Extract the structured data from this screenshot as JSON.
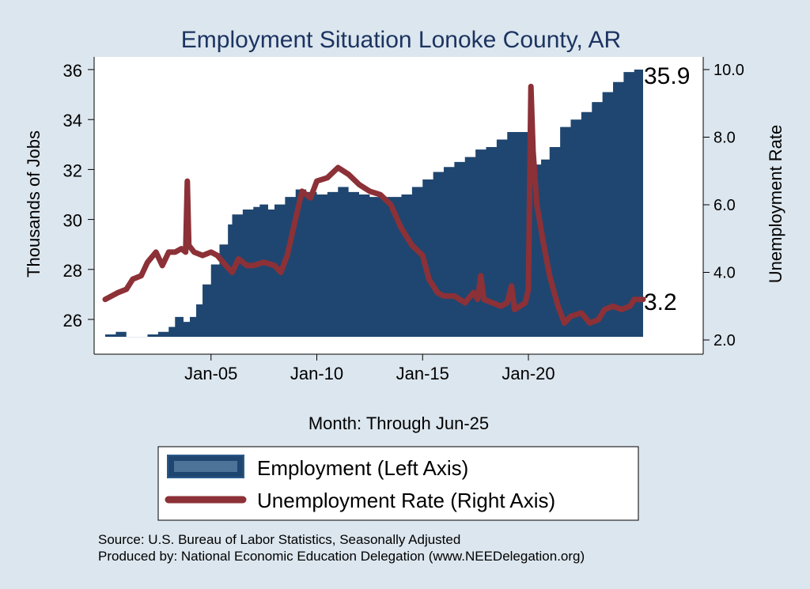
{
  "chart_data": {
    "type": "area+line",
    "title": "Employment Situation Lonoke  County, AR",
    "xlabel": "Month: Through Jun-25",
    "ylabel_left": "Thousands of Jobs",
    "ylabel_right": "Unemployment Rate",
    "x_range": [
      "2000-01",
      "2025-06"
    ],
    "x_ticks": [
      {
        "label": "Jan-05",
        "value": 2005.0
      },
      {
        "label": "Jan-10",
        "value": 2010.0
      },
      {
        "label": "Jan-15",
        "value": 2015.0
      },
      {
        "label": "Jan-20",
        "value": 2020.0
      }
    ],
    "ylim_left": [
      25.2,
      36.5
    ],
    "yticks_left": [
      26,
      28,
      30,
      32,
      34,
      36
    ],
    "ylim_right": [
      1.7,
      10.3
    ],
    "yticks_right": [
      "2.0",
      "4.0",
      "6.0",
      "8.0",
      "10.0"
    ],
    "series": [
      {
        "name": "Employment (Left Axis)",
        "axis": "left",
        "style": "area",
        "color": "#1f4670",
        "points": [
          [
            2000.0,
            25.4
          ],
          [
            2000.5,
            25.5
          ],
          [
            2001.0,
            25.3
          ],
          [
            2001.5,
            25.3
          ],
          [
            2002.0,
            25.4
          ],
          [
            2002.5,
            25.5
          ],
          [
            2003.0,
            25.7
          ],
          [
            2003.3,
            26.1
          ],
          [
            2003.7,
            25.9
          ],
          [
            2004.0,
            26.1
          ],
          [
            2004.3,
            26.6
          ],
          [
            2004.6,
            27.4
          ],
          [
            2005.0,
            28.2
          ],
          [
            2005.4,
            29.0
          ],
          [
            2005.8,
            29.8
          ],
          [
            2006.0,
            30.2
          ],
          [
            2006.5,
            30.4
          ],
          [
            2007.0,
            30.5
          ],
          [
            2007.3,
            30.6
          ],
          [
            2007.7,
            30.4
          ],
          [
            2008.0,
            30.6
          ],
          [
            2008.5,
            30.9
          ],
          [
            2009.0,
            31.2
          ],
          [
            2009.5,
            31.1
          ],
          [
            2010.0,
            31.0
          ],
          [
            2010.5,
            31.1
          ],
          [
            2011.0,
            31.3
          ],
          [
            2011.5,
            31.1
          ],
          [
            2012.0,
            31.0
          ],
          [
            2012.5,
            30.9
          ],
          [
            2013.0,
            30.9
          ],
          [
            2013.5,
            30.9
          ],
          [
            2014.0,
            31.0
          ],
          [
            2014.5,
            31.3
          ],
          [
            2015.0,
            31.6
          ],
          [
            2015.5,
            31.9
          ],
          [
            2016.0,
            32.1
          ],
          [
            2016.5,
            32.3
          ],
          [
            2017.0,
            32.5
          ],
          [
            2017.5,
            32.8
          ],
          [
            2018.0,
            32.9
          ],
          [
            2018.5,
            33.2
          ],
          [
            2019.0,
            33.5
          ],
          [
            2019.5,
            33.5
          ],
          [
            2020.0,
            33.6
          ],
          [
            2020.15,
            32.4
          ],
          [
            2020.3,
            32.2
          ],
          [
            2020.6,
            32.4
          ],
          [
            2021.0,
            32.9
          ],
          [
            2021.5,
            33.7
          ],
          [
            2022.0,
            34.0
          ],
          [
            2022.5,
            34.3
          ],
          [
            2023.0,
            34.7
          ],
          [
            2023.5,
            35.1
          ],
          [
            2024.0,
            35.5
          ],
          [
            2024.5,
            35.9
          ],
          [
            2025.0,
            36.0
          ],
          [
            2025.42,
            35.9
          ]
        ]
      },
      {
        "name": "Unemployment Rate (Right Axis)",
        "axis": "right",
        "style": "line",
        "color": "#8c3137",
        "points": [
          [
            2000.0,
            3.2
          ],
          [
            2000.3,
            3.3
          ],
          [
            2000.6,
            3.4
          ],
          [
            2001.0,
            3.5
          ],
          [
            2001.3,
            3.8
          ],
          [
            2001.7,
            3.9
          ],
          [
            2002.0,
            4.3
          ],
          [
            2002.4,
            4.6
          ],
          [
            2002.7,
            4.2
          ],
          [
            2003.0,
            4.6
          ],
          [
            2003.3,
            4.6
          ],
          [
            2003.6,
            4.7
          ],
          [
            2003.8,
            4.6
          ],
          [
            2003.88,
            6.7
          ],
          [
            2003.95,
            4.8
          ],
          [
            2004.2,
            4.6
          ],
          [
            2004.6,
            4.5
          ],
          [
            2005.0,
            4.6
          ],
          [
            2005.3,
            4.5
          ],
          [
            2005.7,
            4.2
          ],
          [
            2006.0,
            4.0
          ],
          [
            2006.3,
            4.4
          ],
          [
            2006.7,
            4.2
          ],
          [
            2007.0,
            4.2
          ],
          [
            2007.5,
            4.3
          ],
          [
            2008.0,
            4.2
          ],
          [
            2008.3,
            4.0
          ],
          [
            2008.6,
            4.5
          ],
          [
            2009.0,
            5.6
          ],
          [
            2009.3,
            6.4
          ],
          [
            2009.7,
            6.2
          ],
          [
            2010.0,
            6.7
          ],
          [
            2010.5,
            6.8
          ],
          [
            2011.0,
            7.1
          ],
          [
            2011.5,
            6.9
          ],
          [
            2012.0,
            6.6
          ],
          [
            2012.5,
            6.4
          ],
          [
            2013.0,
            6.3
          ],
          [
            2013.5,
            6.0
          ],
          [
            2014.0,
            5.3
          ],
          [
            2014.5,
            4.8
          ],
          [
            2015.0,
            4.5
          ],
          [
            2015.3,
            3.8
          ],
          [
            2015.7,
            3.4
          ],
          [
            2016.0,
            3.3
          ],
          [
            2016.5,
            3.3
          ],
          [
            2017.0,
            3.1
          ],
          [
            2017.4,
            3.4
          ],
          [
            2017.6,
            3.2
          ],
          [
            2017.75,
            3.9
          ],
          [
            2017.9,
            3.2
          ],
          [
            2018.3,
            3.1
          ],
          [
            2018.7,
            3.0
          ],
          [
            2019.0,
            3.1
          ],
          [
            2019.2,
            3.6
          ],
          [
            2019.35,
            2.9
          ],
          [
            2019.6,
            3.0
          ],
          [
            2019.85,
            3.1
          ],
          [
            2020.0,
            3.5
          ],
          [
            2020.12,
            9.5
          ],
          [
            2020.22,
            7.6
          ],
          [
            2020.4,
            6.0
          ],
          [
            2020.7,
            4.9
          ],
          [
            2021.0,
            3.9
          ],
          [
            2021.4,
            3.0
          ],
          [
            2021.7,
            2.5
          ],
          [
            2022.0,
            2.7
          ],
          [
            2022.5,
            2.8
          ],
          [
            2022.9,
            2.5
          ],
          [
            2023.3,
            2.6
          ],
          [
            2023.6,
            2.9
          ],
          [
            2024.0,
            3.0
          ],
          [
            2024.4,
            2.9
          ],
          [
            2024.8,
            3.0
          ],
          [
            2025.0,
            3.2
          ],
          [
            2025.42,
            3.2
          ]
        ]
      }
    ],
    "end_labels": {
      "left": "35.9",
      "right": "3.2"
    },
    "legend": {
      "position": "bottom",
      "entries": [
        "Employment (Left Axis)",
        "Unemployment Rate (Right Axis)"
      ]
    },
    "colors": {
      "background": "#dce6ee",
      "plot_background": "#ffffff",
      "employment": "#1f4670",
      "unemployment": "#8c3137",
      "title": "#1c3461"
    }
  },
  "source": {
    "line1": "Source: U.S. Bureau of Labor Statistics, Seasonally Adjusted",
    "line2": "Produced by: National Economic Education Delegation (www.NEEDelegation.org)"
  }
}
